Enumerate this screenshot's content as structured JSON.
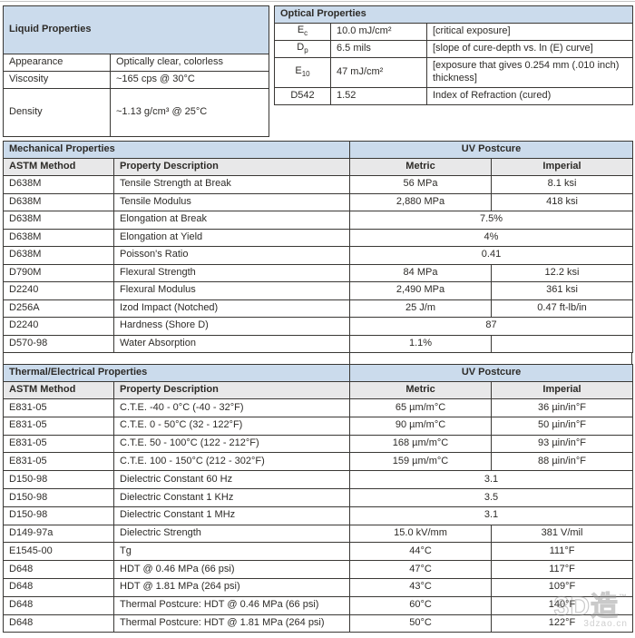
{
  "liquid_table": {
    "title": "Liquid Properties",
    "rows": [
      {
        "label": "Appearance",
        "value": "Optically clear, colorless"
      },
      {
        "label": "Viscosity",
        "value": "~165 cps @ 30°C"
      },
      {
        "label": "Density",
        "value": "~1.13 g/cm³ @ 25°C"
      }
    ]
  },
  "optical_table": {
    "title": "Optical Properties",
    "rows": [
      {
        "sym": "E",
        "sub": "c",
        "value": "10.0 mJ/cm²",
        "desc": "[critical exposure]"
      },
      {
        "sym": "D",
        "sub": "p",
        "value": "6.5 mils",
        "desc": "[slope of cure-depth vs. ln (E) curve]"
      },
      {
        "sym": "E",
        "sub": "10",
        "value": "47 mJ/cm²",
        "desc": "[exposure that gives 0.254 mm (.010 inch) thickness]"
      },
      {
        "sym": "D542",
        "sub": "",
        "value": "1.52",
        "desc": "Index of Refraction (cured)"
      }
    ]
  },
  "mechanical_table": {
    "title": "Mechanical Properties",
    "group_header": "UV Postcure",
    "columns": [
      "ASTM Method",
      "Property Description",
      "Metric",
      "Imperial"
    ],
    "rows": [
      {
        "astm": "D638M",
        "desc": "Tensile Strength at Break",
        "metric": "56 MPa",
        "imperial": "8.1 ksi"
      },
      {
        "astm": "D638M",
        "desc": "Tensile Modulus",
        "metric": "2,880 MPa",
        "imperial": "418 ksi"
      },
      {
        "astm": "D638M",
        "desc": "Elongation at Break",
        "span": "7.5%"
      },
      {
        "astm": "D638M",
        "desc": "Elongation at Yield",
        "span": "4%"
      },
      {
        "astm": "D638M",
        "desc": "Poisson's Ratio",
        "span": "0.41"
      },
      {
        "astm": "D790M",
        "desc": "Flexural Strength",
        "metric": "84 MPa",
        "imperial": "12.2 ksi"
      },
      {
        "astm": "D2240",
        "desc": "Flexural Modulus",
        "metric": "2,490 MPa",
        "imperial": "361 ksi"
      },
      {
        "astm": "D256A",
        "desc": "Izod Impact (Notched)",
        "metric": "25 J/m",
        "imperial": "0.47 ft-lb/in"
      },
      {
        "astm": "D2240",
        "desc": "Hardness (Shore D)",
        "span": "87"
      },
      {
        "astm": "D570-98",
        "desc": "Water Absorption",
        "metric": "1.1%",
        "imperial": ""
      }
    ]
  },
  "thermal_table": {
    "title": "Thermal/Electrical Properties",
    "group_header": "UV Postcure",
    "columns": [
      "ASTM Method",
      "Property Description",
      "Metric",
      "Imperial"
    ],
    "rows": [
      {
        "astm": "E831-05",
        "desc": "C.T.E. -40 - 0°C (-40 - 32°F)",
        "metric": "65 µm/m°C",
        "imperial": "36 µin/in°F"
      },
      {
        "astm": "E831-05",
        "desc": "C.T.E. 0 - 50°C (32 - 122°F)",
        "metric": "90 µm/m°C",
        "imperial": "50 µin/in°F"
      },
      {
        "astm": "E831-05",
        "desc": "C.T.E. 50 - 100°C (122 - 212°F)",
        "metric": "168 µm/m°C",
        "imperial": "93 µin/in°F"
      },
      {
        "astm": "E831-05",
        "desc": "C.T.E. 100 - 150°C (212 - 302°F)",
        "metric": "159 µm/m°C",
        "imperial": "88 µin/in°F"
      },
      {
        "astm": "D150-98",
        "desc": "Dielectric Constant 60 Hz",
        "span": "3.1"
      },
      {
        "astm": "D150-98",
        "desc": "Dielectric Constant 1 KHz",
        "span": "3.5"
      },
      {
        "astm": "D150-98",
        "desc": "Dielectric Constant 1 MHz",
        "span": "3.1"
      },
      {
        "astm": "D149-97a",
        "desc": "Dielectric Strength",
        "metric": "15.0 kV/mm",
        "imperial": "381 V/mil"
      },
      {
        "astm": "E1545-00",
        "desc": "Tg",
        "metric": "44°C",
        "imperial": "111°F"
      },
      {
        "astm": "D648",
        "desc": "HDT @ 0.46 MPa (66 psi)",
        "metric": "47°C",
        "imperial": "117°F"
      },
      {
        "astm": "D648",
        "desc": "HDT @ 1.81 MPa (264 psi)",
        "metric": "43°C",
        "imperial": "109°F"
      },
      {
        "astm": "D648",
        "desc": "Thermal Postcure: HDT @ 0.46 MPa (66 psi)",
        "metric": "60°C",
        "imperial": "140°F"
      },
      {
        "astm": "D648",
        "desc": "Thermal Postcure: HDT @ 1.81 MPa (264 psi)",
        "metric": "50°C",
        "imperial": "122°F"
      }
    ]
  },
  "watermark": {
    "logo": "3D造",
    "tm": "™",
    "url": "3dzao.cn"
  }
}
